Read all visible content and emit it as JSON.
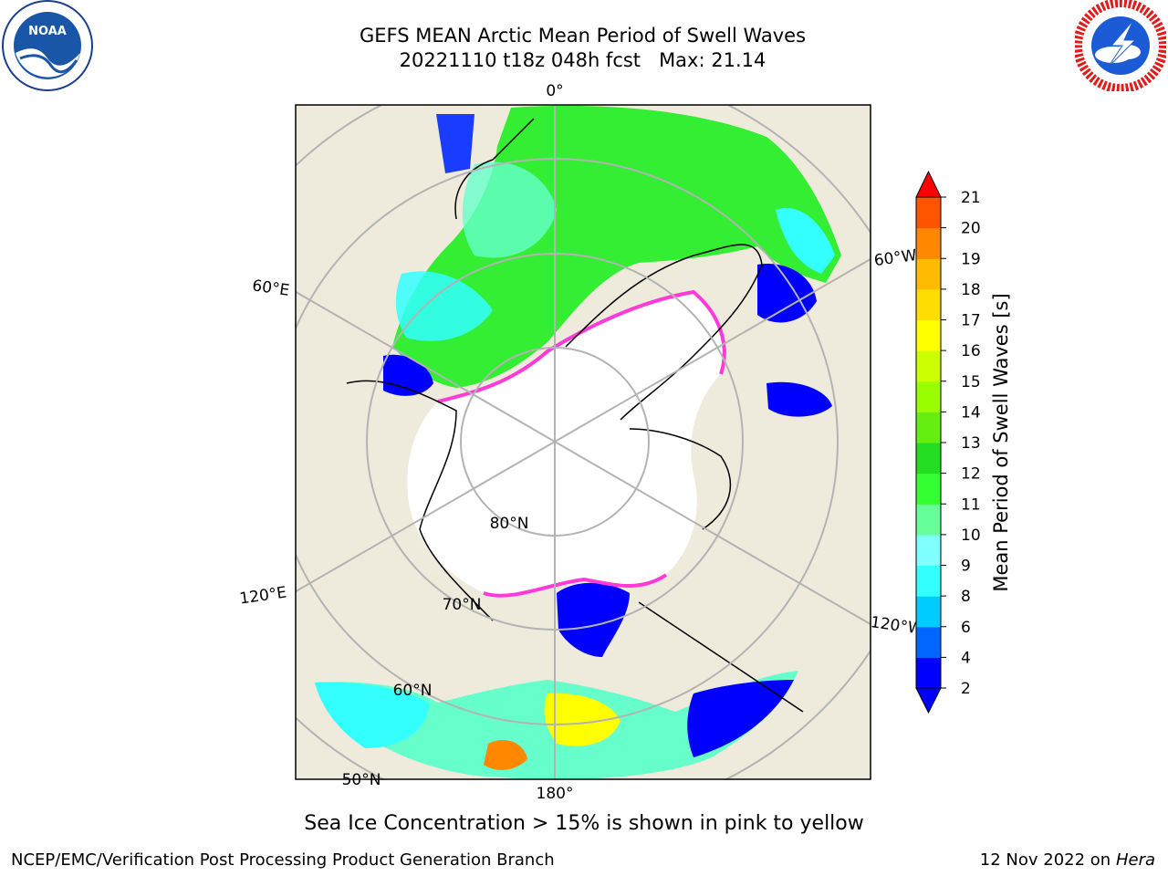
{
  "header": {
    "title_line1": "GEFS MEAN Arctic Mean Period of Swell Waves",
    "title_line2": "20221110 t18z 048h fcst   Max: 21.14",
    "left_logo": "noaa-logo",
    "right_logo": "national-weather-service-logo",
    "noaa_logo_text": "NOAA",
    "noaa_logo_ring_text": "NATIONAL OCEANIC AND ATMOSPHERIC ADMINISTRATION • U.S. DEPARTMENT OF COMMERCE",
    "nws_logo_ring_text": "NATIONAL WEATHER SERVICE"
  },
  "map": {
    "projection": "north-polar-stereographic",
    "field": "Mean Period of Swell Waves",
    "longitude_labels": {
      "top": "0°",
      "left_upper": "60°E",
      "left_lower": "120°E",
      "bottom": "180°",
      "right_upper": "60°W",
      "right_lower": "120°W"
    },
    "latitude_labels": {
      "lat80": "80°N",
      "lat70": "70°N",
      "lat60": "60°N",
      "lat50": "50°N"
    },
    "colors": {
      "land": "#efebdc",
      "ice_free_ocean_no_data": "#ffffff",
      "graticule": "#b3b3b3",
      "coastline": "#000000",
      "sea_ice_edge": "#ff3ad8"
    }
  },
  "colorbar": {
    "label": "Mean Period of Swell Waves [s]",
    "ticks": [
      "2",
      "4",
      "6",
      "8",
      "9",
      "10",
      "11",
      "12",
      "13",
      "14",
      "15",
      "16",
      "17",
      "18",
      "19",
      "20",
      "21"
    ],
    "colors": [
      "#0000ff",
      "#0066ff",
      "#00ccff",
      "#33ffff",
      "#80ffff",
      "#66ff99",
      "#33ff33",
      "#22dd22",
      "#66ee11",
      "#99ff00",
      "#ccff00",
      "#ffff00",
      "#ffdd00",
      "#ffbb00",
      "#ff8800",
      "#ff5500",
      "#ff2200"
    ],
    "under_color": "#0000ff",
    "over_color": "#ff0000"
  },
  "caption": "Sea Ice Concentration > 15% is shown in pink to yellow",
  "footer": {
    "left": "NCEP/EMC/Verification Post Processing Product Generation Branch",
    "right_prefix": "12 Nov 2022 on",
    "right_host": "Hera"
  }
}
